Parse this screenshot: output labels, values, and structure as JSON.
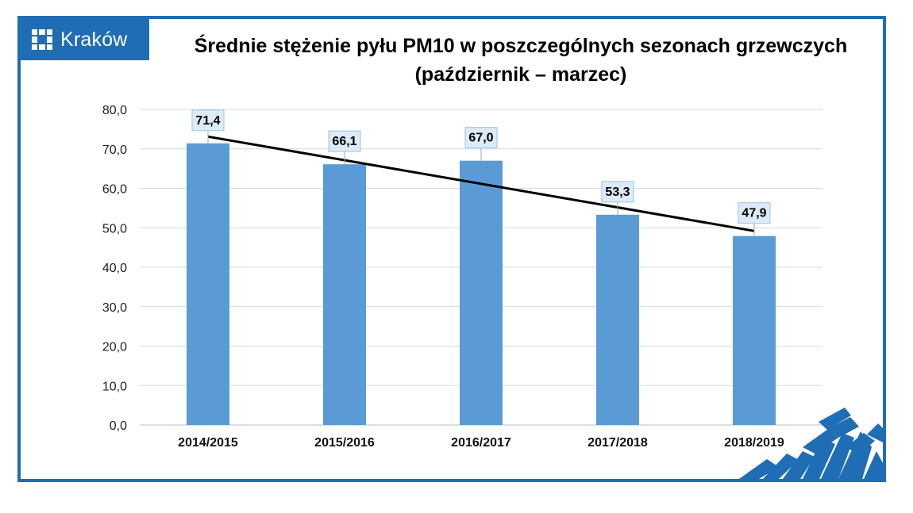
{
  "brand": {
    "name": "Kraków",
    "color": "#1f6db5"
  },
  "chart_data": {
    "type": "bar",
    "title": "Średnie stężenie pyłu PM10 w poszczególnych sezonach grzewczych\n(październik – marzec)",
    "xlabel": "",
    "ylabel": "",
    "categories": [
      "2014/2015",
      "2015/2016",
      "2016/2017",
      "2017/2018",
      "2018/2019"
    ],
    "values": [
      71.4,
      66.1,
      67.0,
      53.3,
      47.9
    ],
    "data_labels": [
      "71,4",
      "66,1",
      "67,0",
      "53,3",
      "47,9"
    ],
    "ylim": [
      0,
      80
    ],
    "yticks": [
      "0,0",
      "10,0",
      "20,0",
      "30,0",
      "40,0",
      "50,0",
      "60,0",
      "70,0",
      "80,0"
    ],
    "grid": true,
    "legend": "none",
    "trendline": "linear",
    "bar_color": "#5b9bd5",
    "trendline_color": "#000000"
  }
}
